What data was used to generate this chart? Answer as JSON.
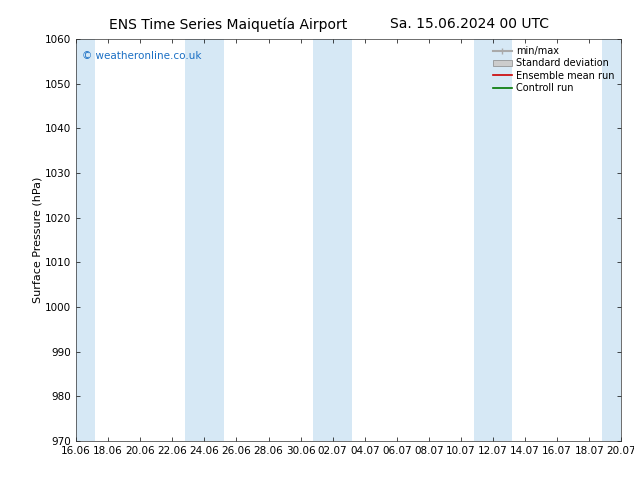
{
  "title_left": "ENS Time Series Maiquetía Airport",
  "title_right": "Sa. 15.06.2024 00 UTC",
  "ylabel": "Surface Pressure (hPa)",
  "ymin": 970,
  "ymax": 1060,
  "yticks": [
    970,
    980,
    990,
    1000,
    1010,
    1020,
    1030,
    1040,
    1050,
    1060
  ],
  "xtick_labels": [
    "16.06",
    "18.06",
    "20.06",
    "22.06",
    "24.06",
    "26.06",
    "28.06",
    "30.06",
    "02.07",
    "04.07",
    "06.07",
    "08.07",
    "10.07",
    "12.07",
    "14.07",
    "16.07",
    "18.07",
    "20.07"
  ],
  "band_color": "#d6e8f5",
  "background_color": "#ffffff",
  "watermark": "© weatheronline.co.uk",
  "watermark_color": "#1a6fc4",
  "legend_items": [
    {
      "label": "min/max",
      "color": "#aaaaaa",
      "lw": 1.5
    },
    {
      "label": "Standard deviation",
      "color": "#cccccc",
      "lw": 6
    },
    {
      "label": "Ensemble mean run",
      "color": "#cc0000",
      "lw": 1.2
    },
    {
      "label": "Controll run",
      "color": "#007700",
      "lw": 1.2
    }
  ],
  "title_fontsize": 10,
  "ylabel_fontsize": 8,
  "tick_fontsize": 7.5
}
